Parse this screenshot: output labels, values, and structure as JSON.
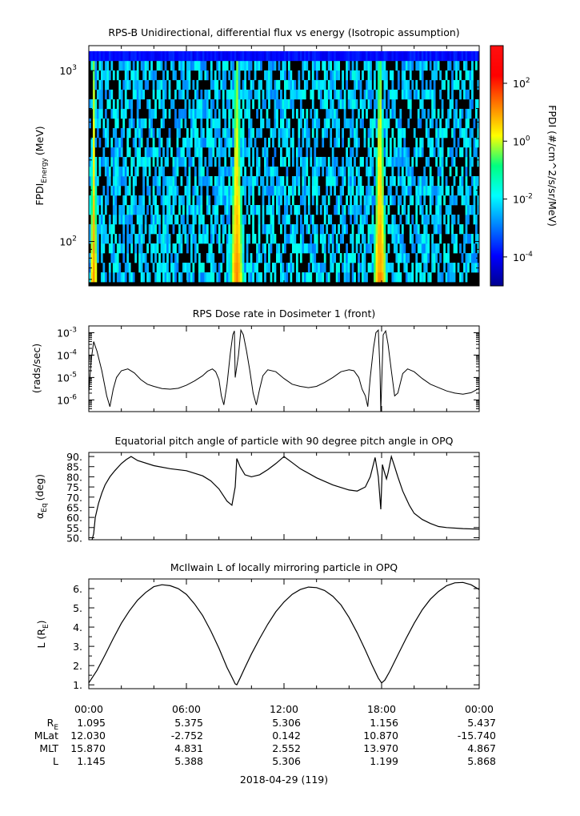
{
  "chart_data": [
    {
      "type": "heatmap",
      "title": "RPS-B  Unidirectional, differential flux vs energy (Isotropic assumption)",
      "ylabel": "FPDI",
      "ylabel_sub": "Energy",
      "ylabel_unit": "(MeV)",
      "yscale": "log",
      "ylim": [
        55,
        1400
      ],
      "yticks": [
        {
          "value": 100,
          "base": "10",
          "exp": "2"
        },
        {
          "value": 1000,
          "base": "10",
          "exp": "3"
        }
      ],
      "xlim": [
        0,
        24
      ],
      "xunit": "hours",
      "colorbar": {
        "label": "FPDI (#/cm^2/s/sr/MeV)",
        "scale": "log",
        "zlim_exp": [
          -5,
          3.3
        ],
        "ticks": [
          {
            "base": "10",
            "exp": "2",
            "value": 2
          },
          {
            "base": "10",
            "exp": "0",
            "value": 0
          },
          {
            "base": "10",
            "exp": "-2",
            "value": -2
          },
          {
            "base": "10",
            "exp": "-4",
            "value": -4
          }
        ]
      },
      "features": [
        {
          "time": 0.3,
          "note": "high flux, low energies"
        },
        {
          "time": 9.1,
          "note": "high flux band"
        },
        {
          "time": 17.9,
          "note": "high flux band"
        }
      ]
    },
    {
      "type": "line",
      "title": "RPS  Dose rate in Dosimeter 1 (front)",
      "ylabel": "(rads/sec)",
      "yscale": "log",
      "ylim": [
        3e-07,
        0.002
      ],
      "yticks": [
        {
          "value": 0.001,
          "base": "10",
          "exp": "-3"
        },
        {
          "value": 0.0001,
          "base": "10",
          "exp": "-4"
        },
        {
          "value": 1e-05,
          "base": "10",
          "exp": "-5"
        },
        {
          "value": 1e-06,
          "base": "10",
          "exp": "-6"
        }
      ],
      "xlim": [
        0,
        24
      ],
      "x": [
        0.0,
        0.15,
        0.3,
        0.5,
        0.8,
        1.1,
        1.3,
        1.5,
        1.7,
        2.0,
        2.4,
        2.8,
        3.2,
        3.6,
        4.0,
        4.5,
        5.0,
        5.5,
        6.0,
        6.5,
        7.0,
        7.3,
        7.6,
        7.8,
        8.0,
        8.15,
        8.3,
        8.5,
        8.7,
        8.85,
        8.95,
        9.0,
        9.2,
        9.35,
        9.5,
        9.7,
        9.9,
        10.1,
        10.3,
        10.5,
        10.7,
        11.0,
        11.5,
        12.0,
        12.5,
        13.0,
        13.5,
        14.0,
        14.5,
        15.0,
        15.5,
        16.0,
        16.3,
        16.6,
        16.8,
        17.0,
        17.15,
        17.3,
        17.5,
        17.65,
        17.8,
        17.9,
        17.95,
        18.1,
        18.25,
        18.4,
        18.6,
        18.8,
        19.0,
        19.3,
        19.6,
        20.0,
        20.5,
        21.0,
        21.5,
        22.0,
        22.5,
        23.0,
        23.5,
        24.0
      ],
      "y": [
        2e-06,
        6e-05,
        0.0004,
        0.00015,
        2e-05,
        1.5e-06,
        5e-07,
        3e-06,
        1e-05,
        2e-05,
        2.4e-05,
        1.6e-05,
        8e-06,
        5e-06,
        4e-06,
        3.2e-06,
        3e-06,
        3.3e-06,
        4.5e-06,
        7e-06,
        1.2e-05,
        1.9e-05,
        2.4e-05,
        1.8e-05,
        8e-06,
        1.5e-06,
        6e-07,
        5e-06,
        0.00012,
        0.0008,
        0.0012,
        1e-05,
        0.0001,
        0.0013,
        0.0008,
        0.00015,
        2e-05,
        2e-06,
        6e-07,
        3e-06,
        1.2e-05,
        2.2e-05,
        1.8e-05,
        9e-06,
        5e-06,
        4e-06,
        3.5e-06,
        4e-06,
        6e-06,
        1e-05,
        1.8e-05,
        2.2e-05,
        2e-05,
        1e-05,
        3e-06,
        1.5e-06,
        5e-07,
        1e-05,
        0.0002,
        0.001,
        0.0013,
        2e-05,
        1e-07,
        0.0008,
        0.0012,
        0.0003,
        2e-05,
        1.5e-06,
        2e-06,
        1.5e-05,
        2.4e-05,
        1.8e-05,
        9e-06,
        5e-06,
        3.5e-06,
        2.5e-06,
        2e-06,
        1.8e-06,
        2.1e-06,
        3.3e-06
      ]
    },
    {
      "type": "line",
      "title": "Equatorial pitch angle of particle with 90 degree pitch angle in OPQ",
      "ylabel": "α",
      "ylabel_sub": "Eq",
      "ylabel_unit": "(deg)",
      "ylim": [
        49,
        92
      ],
      "yticks": [
        "90.",
        "85.",
        "80.",
        "75.",
        "70.",
        "65.",
        "60.",
        "55.",
        "50."
      ],
      "ytick_values": [
        90,
        85,
        80,
        75,
        70,
        65,
        60,
        55,
        50
      ],
      "xlim": [
        0,
        24
      ],
      "x": [
        0.2,
        0.3,
        0.4,
        0.6,
        0.8,
        1.0,
        1.3,
        1.6,
        2.0,
        2.3,
        2.6,
        3.0,
        4.0,
        5.0,
        6.0,
        7.0,
        7.5,
        8.0,
        8.5,
        8.8,
        9.0,
        9.1,
        9.3,
        9.6,
        10.0,
        10.5,
        11.0,
        11.5,
        12.0,
        12.5,
        13.0,
        14.0,
        15.0,
        16.0,
        16.5,
        17.0,
        17.3,
        17.6,
        17.8,
        17.95,
        18.05,
        18.15,
        18.3,
        18.4,
        18.6,
        18.8,
        19.0,
        19.3,
        19.7,
        20.0,
        20.5,
        21.0,
        21.5,
        22.0,
        23.0,
        24.0
      ],
      "y": [
        49,
        52,
        60,
        67,
        72,
        76,
        80,
        83,
        86.5,
        88.5,
        90,
        88,
        85.5,
        84,
        83,
        80.5,
        78,
        74,
        68,
        66,
        75,
        89,
        85,
        81,
        80,
        81,
        83.5,
        86.5,
        90,
        87,
        84,
        79.5,
        76,
        73.5,
        73,
        75,
        80,
        89.5,
        80,
        64,
        86,
        83,
        79,
        82,
        90,
        85,
        80,
        73,
        66,
        62,
        59,
        57,
        55.5,
        55,
        54.5,
        54.2
      ]
    },
    {
      "type": "line",
      "title": "McIlwain L of locally mirroring particle in OPQ",
      "ylabel": "L (R",
      "ylabel_sub": "E",
      "ylabel_unit": ")",
      "ylim": [
        0.8,
        6.5
      ],
      "yticks": [
        "6.",
        "5.",
        "4.",
        "3.",
        "2.",
        "1."
      ],
      "ytick_values": [
        6,
        5,
        4,
        3,
        2,
        1
      ],
      "xlim": [
        0,
        24
      ],
      "x": [
        0.0,
        0.5,
        1.0,
        1.5,
        2.0,
        2.5,
        3.0,
        3.5,
        4.0,
        4.5,
        5.0,
        5.5,
        6.0,
        6.5,
        7.0,
        7.5,
        8.0,
        8.5,
        8.8,
        9.0,
        9.1,
        9.3,
        9.6,
        10.0,
        10.5,
        11.0,
        11.5,
        12.0,
        12.5,
        13.0,
        13.5,
        14.0,
        14.5,
        15.0,
        15.5,
        16.0,
        16.5,
        17.0,
        17.4,
        17.8,
        18.0,
        18.2,
        18.5,
        19.0,
        19.5,
        20.0,
        20.5,
        21.0,
        21.5,
        22.0,
        22.5,
        23.0,
        23.5,
        24.0
      ],
      "y": [
        1.1,
        1.75,
        2.55,
        3.4,
        4.2,
        4.85,
        5.4,
        5.8,
        6.1,
        6.2,
        6.15,
        6.0,
        5.7,
        5.2,
        4.6,
        3.8,
        2.9,
        1.9,
        1.4,
        1.05,
        1.0,
        1.35,
        1.9,
        2.6,
        3.4,
        4.15,
        4.8,
        5.3,
        5.7,
        5.95,
        6.08,
        6.05,
        5.9,
        5.6,
        5.15,
        4.5,
        3.7,
        2.8,
        2.05,
        1.35,
        1.1,
        1.25,
        1.7,
        2.55,
        3.4,
        4.2,
        4.9,
        5.45,
        5.85,
        6.15,
        6.3,
        6.32,
        6.2,
        5.95
      ]
    }
  ],
  "time_axis": {
    "tick_labels": [
      "00:00",
      "06:00",
      "12:00",
      "18:00",
      "00:00"
    ],
    "tick_hours": [
      0,
      6,
      12,
      18,
      24
    ],
    "minor_step_hours": 2,
    "date_label": "2018-04-29 (119)",
    "ephemeris": [
      {
        "label": "R",
        "label_sub": "E",
        "values": [
          "1.095",
          "5.375",
          "5.306",
          "1.156",
          "5.437"
        ]
      },
      {
        "label": "MLat",
        "values": [
          "12.030",
          "-2.752",
          "0.142",
          "10.870",
          "-15.740"
        ]
      },
      {
        "label": "MLT",
        "values": [
          "15.870",
          "4.831",
          "2.552",
          "13.970",
          "4.867"
        ]
      },
      {
        "label": "L",
        "values": [
          "1.145",
          "5.388",
          "5.306",
          "1.199",
          "5.868"
        ]
      }
    ]
  }
}
